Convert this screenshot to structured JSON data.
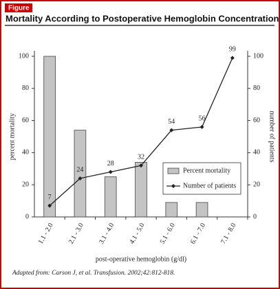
{
  "figure_label": "Figure",
  "source": "Adapted from: Carson J, et al. Transfusion. 2002;42:812-818.",
  "chart_data": {
    "type": "bar-line",
    "title": "Mortality According to Postoperative Hemoglobin Concentration",
    "x_label": "post-operative hemoglobin (g/dl)",
    "y_label": "percent mortality",
    "y2_label": "number of patients",
    "categories": [
      "1.1 - 2.0",
      "2.1 - 3.0",
      "3.1 - 4.0",
      "4.1 - 5.0",
      "5.1 - 6.0",
      "6.1 - 7.0",
      "7.1 - 8.0"
    ],
    "series": [
      {
        "name": "Percent mortality",
        "type": "bar",
        "color": "#c4c4c4",
        "values": [
          100,
          54,
          25,
          34,
          9,
          9,
          null
        ]
      },
      {
        "name": "Number of patients",
        "type": "line",
        "axis": "y2",
        "color": "#222222",
        "values": [
          7,
          24,
          28,
          32,
          54,
          56,
          99
        ]
      }
    ],
    "ylim": [
      0,
      100
    ],
    "yticks": [
      0,
      20,
      40,
      60,
      80,
      100
    ],
    "y2lim": [
      0,
      100
    ],
    "y2ticks": [
      0,
      20,
      40,
      60,
      80,
      100
    ],
    "legend": "lower-right"
  }
}
